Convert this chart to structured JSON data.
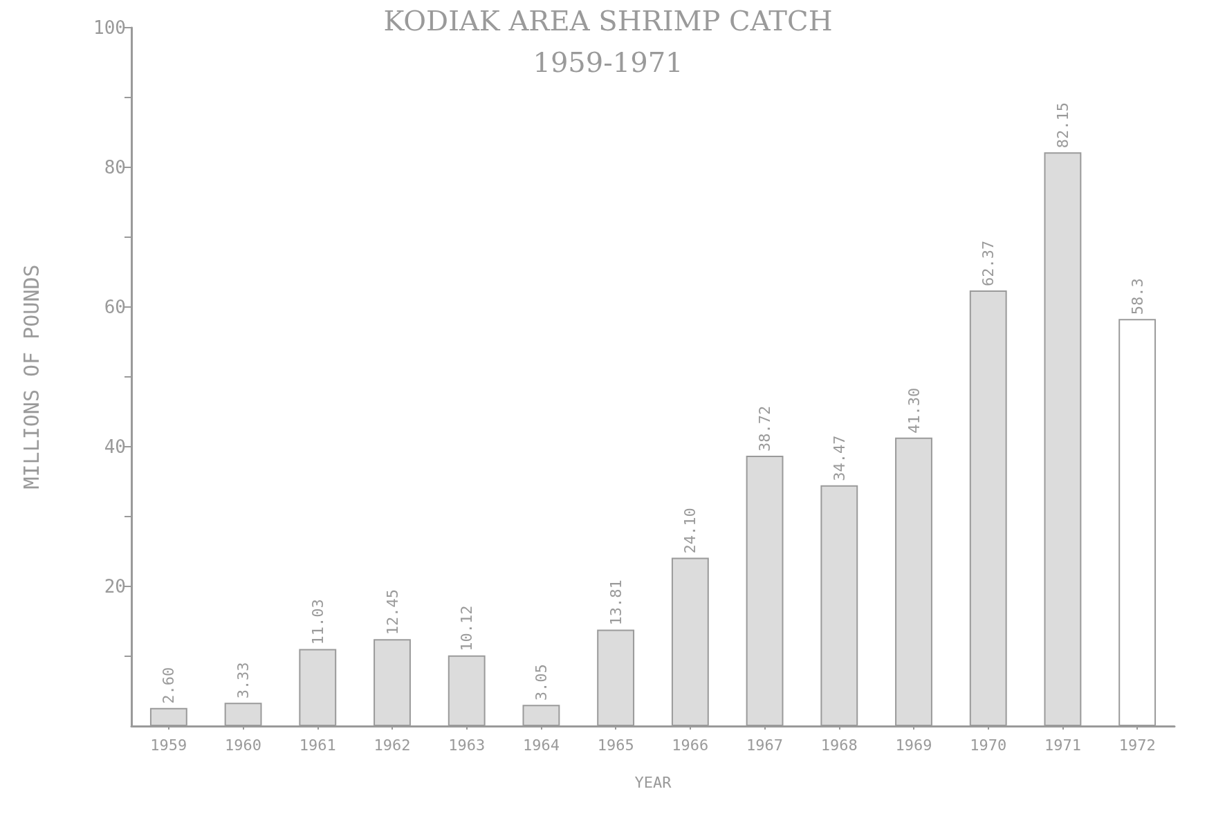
{
  "chart_data": {
    "type": "bar",
    "title": "KODIAK AREA SHRIMP CATCH",
    "subtitle": "1959-1971",
    "xlabel": "YEAR",
    "ylabel": "MILLIONS OF POUNDS",
    "categories": [
      "1959",
      "1960",
      "1961",
      "1962",
      "1963",
      "1964",
      "1965",
      "1966",
      "1967",
      "1968",
      "1969",
      "1970",
      "1971",
      "1972"
    ],
    "values": [
      2.6,
      3.33,
      11.03,
      12.45,
      10.12,
      3.05,
      13.81,
      24.1,
      38.72,
      34.47,
      41.3,
      62.37,
      82.15,
      58.3
    ],
    "value_labels": [
      "2.60",
      "3.33",
      "11.03",
      "12.45",
      "10.12",
      "3.05",
      "13.81",
      "24.10",
      "38.72",
      "34.47",
      "41.30",
      "62.37",
      "82.15",
      "58.3"
    ],
    "colors": [
      "#dcdcdc",
      "#dcdcdc",
      "#dcdcdc",
      "#dcdcdc",
      "#dcdcdc",
      "#dcdcdc",
      "#dcdcdc",
      "#dcdcdc",
      "#dcdcdc",
      "#dcdcdc",
      "#dcdcdc",
      "#dcdcdc",
      "#dcdcdc",
      "#ffffff"
    ],
    "ylim": [
      0,
      100
    ],
    "yticks": [
      {
        "value": 10,
        "label": null
      },
      20,
      {
        "value": 30,
        "label": null
      },
      40,
      {
        "value": 50,
        "label": null
      },
      60,
      {
        "value": 70,
        "label": null
      },
      80,
      {
        "value": 90,
        "label": null
      },
      100
    ],
    "grid": false
  }
}
